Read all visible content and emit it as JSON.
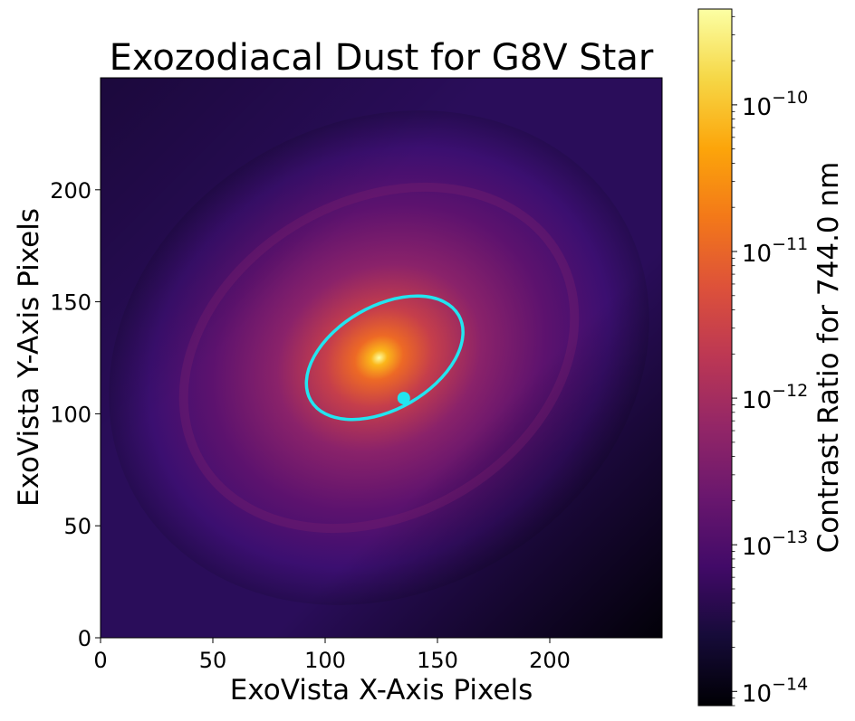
{
  "chart_data": {
    "type": "heatmap",
    "title": "Exozodiacal Dust for G8V Star",
    "xlabel": "ExoVista X-Axis Pixels",
    "ylabel": "ExoVista Y-Axis Pixels",
    "xlim": [
      0,
      250
    ],
    "ylim": [
      0,
      250
    ],
    "xticks": [
      0,
      50,
      100,
      150,
      200
    ],
    "yticks": [
      0,
      50,
      100,
      150,
      200
    ],
    "colormap": "inferno",
    "colorbar": {
      "label": "Contrast Ratio for 744.0 nm",
      "scale": "log",
      "range": [
        8e-15,
        4.5e-10
      ],
      "ticks": [
        {
          "value": 1e-14,
          "base": "10",
          "exp": "−14"
        },
        {
          "value": 1e-13,
          "base": "10",
          "exp": "−13"
        },
        {
          "value": 1e-12,
          "base": "10",
          "exp": "−12"
        },
        {
          "value": 1e-11,
          "base": "10",
          "exp": "−11"
        },
        {
          "value": 1e-10,
          "base": "10",
          "exp": "−10"
        }
      ]
    },
    "dust_center": [
      124,
      125
    ],
    "orbit": {
      "center": [
        126.5,
        125
      ],
      "semi_major": 38,
      "semi_minor": 23,
      "angle_deg": 30,
      "color": "#22e5f0"
    },
    "planet": {
      "x": 135,
      "y": 107,
      "color": "#22e5f0"
    }
  }
}
